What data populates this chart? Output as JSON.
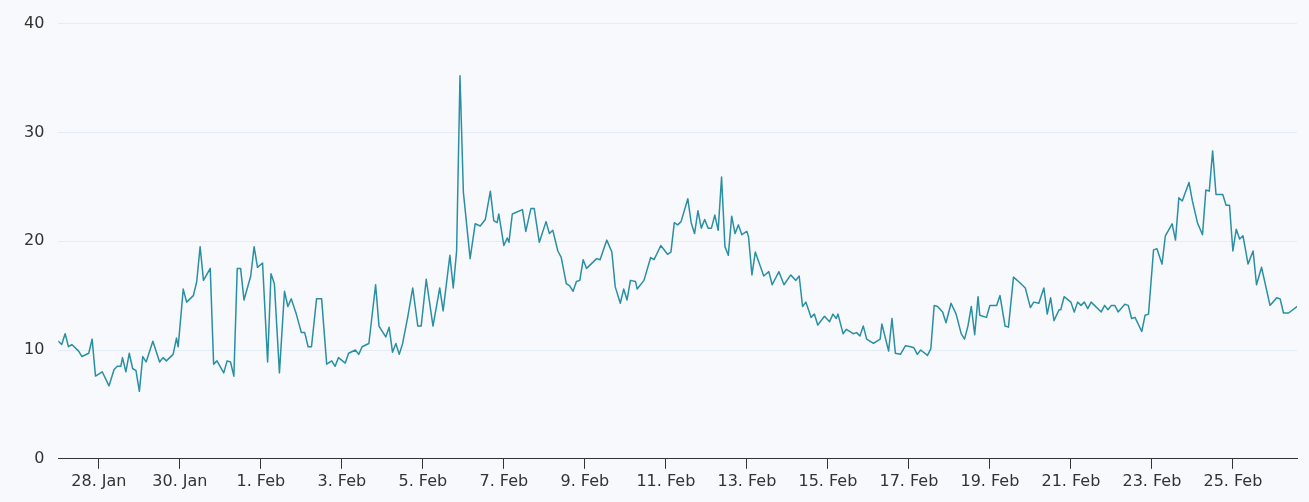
{
  "chart_data": {
    "type": "line",
    "xlim": [
      "--01-27T00:00",
      "--02-26T14:00"
    ],
    "ylim": [
      0,
      40
    ],
    "yticks": [
      0,
      10,
      20,
      30,
      40
    ],
    "xticks": [
      {
        "value": "--01-28",
        "label": "28. Jan"
      },
      {
        "value": "--01-30",
        "label": "30. Jan"
      },
      {
        "value": "--02-01",
        "label": "1. Feb"
      },
      {
        "value": "--02-03",
        "label": "3. Feb"
      },
      {
        "value": "--02-05",
        "label": "5. Feb"
      },
      {
        "value": "--02-07",
        "label": "7. Feb"
      },
      {
        "value": "--02-09",
        "label": "9. Feb"
      },
      {
        "value": "--02-11",
        "label": "11. Feb"
      },
      {
        "value": "--02-13",
        "label": "13. Feb"
      },
      {
        "value": "--02-15",
        "label": "15. Feb"
      },
      {
        "value": "--02-17",
        "label": "17. Feb"
      },
      {
        "value": "--02-19",
        "label": "19. Feb"
      },
      {
        "value": "--02-21",
        "label": "21. Feb"
      },
      {
        "value": "--02-23",
        "label": "23. Feb"
      },
      {
        "value": "--02-25",
        "label": "25. Feb"
      }
    ],
    "grid": "y",
    "legend": false,
    "marker": "none",
    "line_style": "solid",
    "series": [
      {
        "color": "#2a8fa3",
        "x": [
          "--01-27T00:00",
          "--01-27T02:00",
          "--01-27T04:00",
          "--01-27T06:00",
          "--01-27T08:00",
          "--01-27T12:00",
          "--01-27T14:00",
          "--01-27T18:00",
          "--01-27T20:00",
          "--01-27T22:00",
          "--01-28T02:00",
          "--01-28T06:00",
          "--01-28T09:00",
          "--01-28T11:00",
          "--01-28T13:00",
          "--01-28T14:00",
          "--01-28T16:00",
          "--01-28T18:00",
          "--01-28T20:00",
          "--01-28T22:00",
          "--01-29T00:00",
          "--01-29T02:00",
          "--01-29T04:00",
          "--01-29T08:00",
          "--01-29T12:00",
          "--01-29T14:00",
          "--01-29T16:00",
          "--01-29T20:00",
          "--01-29T22:00",
          "--01-29T23:00",
          "--01-30T02:00",
          "--01-30T04:00",
          "--01-30T08:00",
          "--01-30T10:00",
          "--01-30T12:00",
          "--01-30T14:00",
          "--01-30T18:00",
          "--01-30T20:00",
          "--01-30T22:00",
          "--01-31T02:00",
          "--01-31T04:00",
          "--01-31T06:00",
          "--01-31T08:00",
          "--01-31T10:00",
          "--01-31T12:00",
          "--01-31T14:00",
          "--01-31T18:00",
          "--01-31T20:00",
          "--01-31T22:00",
          "--02-01T01:00",
          "--02-01T04:00",
          "--02-01T06:00",
          "--02-01T08:00",
          "--02-01T11:00",
          "--02-01T14:00",
          "--02-01T16:00",
          "--02-01T18:00",
          "--02-01T21:00",
          "--02-02T00:00",
          "--02-02T02:00",
          "--02-02T04:00",
          "--02-02T06:00",
          "--02-02T09:00",
          "--02-02T12:00",
          "--02-02T15:00",
          "--02-02T18:00",
          "--02-02T20:00",
          "--02-02T22:00",
          "--02-03T02:00",
          "--02-03T04:00",
          "--02-03T08:00",
          "--02-03T10:00",
          "--02-03T12:00",
          "--02-03T16:00",
          "--02-03T20:00",
          "--02-03T22:00",
          "--02-04T02:00",
          "--02-04T04:00",
          "--02-04T06:00",
          "--02-04T08:00",
          "--02-04T10:00",
          "--02-04T12:00",
          "--02-04T15:00",
          "--02-04T18:00",
          "--02-04T21:00",
          "--02-04T23:00",
          "--02-05T02:00",
          "--02-05T06:00",
          "--02-05T10:00",
          "--02-05T12:00",
          "--02-05T16:00",
          "--02-05T18:00",
          "--02-05T20:00",
          "--02-05T22:00",
          "--02-06T00:00",
          "--02-06T01:00",
          "--02-06T04:00",
          "--02-06T07:00",
          "--02-06T10:00",
          "--02-06T13:00",
          "--02-06T16:00",
          "--02-06T18:00",
          "--02-06T20:00",
          "--02-06T21:00",
          "--02-07T00:00",
          "--02-07T02:00",
          "--02-07T03:00",
          "--02-07T05:00",
          "--02-07T11:00",
          "--02-07T13:00",
          "--02-07T16:00",
          "--02-07T18:00",
          "--02-07T21:00",
          "--02-08T01:00",
          "--02-08T03:00",
          "--02-08T05:00",
          "--02-08T08:00",
          "--02-08T10:00",
          "--02-08T13:00",
          "--02-08T15:00",
          "--02-08T17:00",
          "--02-08T19:00",
          "--02-08T21:00",
          "--02-08T23:00",
          "--02-09T01:00",
          "--02-09T07:00",
          "--02-09T09:00",
          "--02-09T13:00",
          "--02-09T16:00",
          "--02-09T18:00",
          "--02-09T21:00",
          "--02-09T23:00",
          "--02-10T01:00",
          "--02-10T03:00",
          "--02-10T06:00",
          "--02-10T07:00",
          "--02-10T11:00",
          "--02-10T15:00",
          "--02-10T17:00",
          "--02-10T21:00",
          "--02-11T01:00",
          "--02-11T03:00",
          "--02-11T05:00",
          "--02-11T07:00",
          "--02-11T09:00",
          "--02-11T13:00",
          "--02-11T15:00",
          "--02-11T17:00",
          "--02-11T19:00",
          "--02-11T21:00",
          "--02-11T23:00",
          "--02-12T01:00",
          "--02-12T03:00",
          "--02-12T05:00",
          "--02-12T07:00",
          "--02-12T09:00",
          "--02-12T11:00",
          "--02-12T13:00",
          "--02-12T15:00",
          "--02-12T17:00",
          "--02-12T19:00",
          "--02-12T21:00",
          "--02-13T00:00",
          "--02-13T01:00",
          "--02-13T03:00",
          "--02-13T05:00",
          "--02-13T10:00",
          "--02-13T13:00",
          "--02-13T15:00",
          "--02-13T19:00",
          "--02-13T22:00",
          "--02-14T02:00",
          "--02-14T05:00",
          "--02-14T07:00",
          "--02-14T09:00",
          "--02-14T11:00",
          "--02-14T14:00",
          "--02-14T16:00",
          "--02-14T18:00",
          "--02-14T22:00",
          "--02-15T01:00",
          "--02-15T03:00",
          "--02-15T05:00",
          "--02-15T06:00",
          "--02-15T09:00",
          "--02-15T11:00",
          "--02-15T15:00",
          "--02-15T17:00",
          "--02-15T19:00",
          "--02-15T21:00",
          "--02-15T23:00",
          "--02-16T03:00",
          "--02-16T07:00",
          "--02-16T08:00",
          "--02-16T12:00",
          "--02-16T14:00",
          "--02-16T16:00",
          "--02-16T19:00",
          "--02-16T22:00",
          "--02-17T01:00",
          "--02-17T03:00",
          "--02-17T05:00",
          "--02-17T07:00",
          "--02-17T11:00",
          "--02-17T13:00",
          "--02-17T15:00",
          "--02-17T17:00",
          "--02-17T20:00",
          "--02-17T22:00",
          "--02-18T01:00",
          "--02-18T04:00",
          "--02-18T07:00",
          "--02-18T09:00",
          "--02-18T11:00",
          "--02-18T13:00",
          "--02-18T15:00",
          "--02-18T17:00",
          "--02-18T18:00",
          "--02-18T22:00",
          "--02-19T00:00",
          "--02-19T04:00",
          "--02-19T06:00",
          "--02-19T09:00",
          "--02-19T11:00",
          "--02-19T14:00",
          "--02-19T17:00",
          "--02-19T21:00",
          "--02-20T00:00",
          "--02-20T02:00",
          "--02-20T05:00",
          "--02-20T08:00",
          "--02-20T10:00",
          "--02-20T12:00",
          "--02-20T14:00",
          "--02-20T17:00",
          "--02-20T18:00",
          "--02-20T20:00",
          "--02-21T00:00",
          "--02-21T02:00",
          "--02-21T04:00",
          "--02-21T06:00",
          "--02-21T08:00",
          "--02-21T10:00",
          "--02-21T12:00",
          "--02-21T14:00",
          "--02-21T18:00",
          "--02-21T20:00",
          "--02-21T22:00",
          "--02-22T00:00",
          "--02-22T02:00",
          "--02-22T04:00",
          "--02-22T08:00",
          "--02-22T10:00",
          "--02-22T12:00",
          "--02-22T14:00",
          "--02-22T18:00",
          "--02-22T20:00",
          "--02-22T22:00",
          "--02-23T01:00",
          "--02-23T03:00",
          "--02-23T06:00",
          "--02-23T08:00",
          "--02-23T12:00",
          "--02-23T14:00",
          "--02-23T16:00",
          "--02-23T18:00",
          "--02-23T22:00",
          "--02-24T00:00",
          "--02-24T03:00",
          "--02-24T06:00",
          "--02-24T08:00",
          "--02-24T10:00",
          "--02-24T12:00",
          "--02-24T14:00",
          "--02-24T18:00",
          "--02-24T20:00",
          "--02-24T22:00",
          "--02-25T00:00",
          "--02-25T02:00",
          "--02-25T04:00",
          "--02-25T06:00",
          "--02-25T09:00",
          "--02-25T12:00",
          "--02-25T14:00",
          "--02-25T17:00",
          "--02-25T22:00",
          "--02-26T02:00",
          "--02-26T04:00",
          "--02-26T06:00",
          "--02-26T09:00",
          "--02-26T14:00"
        ],
        "values": [
          10.8,
          10.5,
          11.5,
          10.3,
          10.5,
          9.9,
          9.4,
          9.7,
          11.0,
          7.6,
          8.0,
          6.7,
          8.2,
          8.5,
          8.5,
          9.3,
          8.0,
          9.7,
          8.3,
          8.1,
          6.2,
          9.4,
          8.9,
          10.8,
          8.9,
          9.3,
          9.0,
          9.6,
          11.1,
          10.3,
          15.6,
          14.4,
          15.0,
          16.3,
          19.5,
          16.4,
          17.5,
          8.7,
          9.0,
          7.9,
          9.0,
          8.9,
          7.6,
          17.5,
          17.5,
          14.6,
          16.8,
          19.5,
          17.6,
          18.0,
          8.9,
          17.0,
          16.1,
          7.9,
          15.4,
          14.0,
          14.7,
          13.3,
          11.6,
          11.6,
          10.3,
          10.3,
          14.7,
          14.7,
          8.7,
          9.0,
          8.5,
          9.3,
          8.8,
          9.7,
          10.0,
          9.6,
          10.3,
          10.6,
          16.0,
          12.2,
          11.2,
          12.1,
          9.8,
          10.6,
          9.6,
          10.6,
          13.0,
          15.7,
          12.2,
          12.2,
          16.5,
          12.2,
          15.7,
          13.6,
          18.7,
          15.7,
          19.1,
          35.2,
          24.5,
          23.0,
          18.4,
          21.6,
          21.4,
          22.0,
          24.6,
          21.9,
          21.7,
          22.5,
          19.6,
          20.3,
          19.9,
          22.5,
          22.9,
          20.9,
          23.0,
          23.0,
          19.9,
          21.8,
          20.7,
          21.0,
          19.1,
          18.5,
          16.1,
          15.9,
          15.4,
          16.3,
          16.4,
          18.3,
          17.5,
          18.4,
          18.3,
          20.1,
          19.0,
          15.8,
          14.3,
          15.6,
          14.6,
          16.4,
          16.3,
          15.6,
          16.4,
          18.5,
          18.3,
          19.6,
          18.8,
          19.0,
          21.7,
          21.5,
          21.8,
          23.9,
          21.7,
          20.7,
          22.8,
          21.2,
          22.0,
          21.2,
          21.2,
          22.4,
          21.0,
          25.9,
          19.5,
          18.7,
          22.3,
          20.7,
          21.5,
          20.6,
          20.9,
          20.4,
          16.9,
          19.0,
          16.8,
          17.2,
          16.0,
          17.2,
          16.0,
          16.9,
          16.4,
          16.8,
          14.0,
          14.4,
          13.0,
          13.3,
          12.3,
          13.1,
          12.6,
          13.3,
          12.9,
          13.3,
          11.5,
          11.9,
          11.5,
          11.6,
          11.3,
          12.2,
          11.0,
          10.6,
          11.0,
          12.4,
          9.9,
          12.9,
          9.7,
          9.6,
          10.4,
          10.3,
          10.2,
          9.6,
          10.0,
          9.5,
          10.1,
          14.1,
          14.0,
          13.5,
          12.5,
          14.3,
          13.3,
          11.5,
          11.0,
          12.2,
          14.0,
          11.4,
          14.9,
          13.2,
          13.0,
          14.1,
          14.1,
          15.0,
          12.2,
          12.1,
          16.7,
          16.3,
          15.7,
          13.9,
          14.4,
          14.3,
          15.7,
          13.3,
          14.8,
          12.7,
          13.7,
          13.7,
          14.9,
          14.4,
          13.5,
          14.4,
          14.1,
          14.4,
          13.8,
          14.4,
          14.1,
          13.5,
          14.1,
          13.7,
          14.1,
          14.1,
          13.5,
          14.2,
          14.1,
          12.9,
          13.0,
          11.7,
          13.2,
          13.3,
          19.2,
          19.3,
          17.9,
          20.5,
          21.6,
          20.1,
          24.0,
          23.7,
          25.4,
          23.7,
          21.7,
          20.6,
          24.7,
          24.6,
          28.3,
          24.3,
          24.3,
          23.3,
          23.3,
          19.1,
          21.1,
          20.2,
          20.5,
          17.9,
          19.1,
          16.0,
          17.6,
          14.1,
          14.8,
          14.7,
          13.4,
          13.4,
          14.0
        ]
      }
    ]
  }
}
